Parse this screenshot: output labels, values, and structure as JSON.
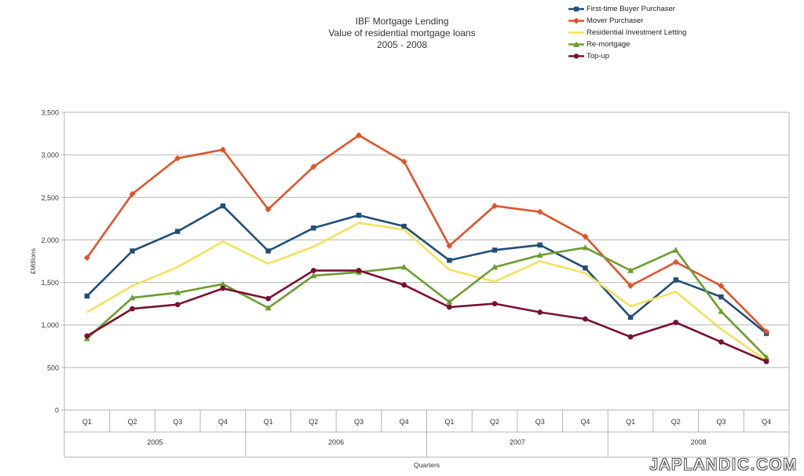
{
  "chart_data": {
    "type": "line",
    "title_lines": [
      "IBF Mortgage Lending",
      "Value of residential mortgage loans",
      "2005 - 2008"
    ],
    "xlabel": "Quarters",
    "ylabel": "£Millions",
    "ylim": [
      0,
      3500
    ],
    "yticks": [
      0,
      500,
      1000,
      1500,
      2000,
      2500,
      3000,
      3500
    ],
    "ytick_labels": [
      "0",
      "500",
      "1,000",
      "1,500",
      "2,000",
      "2,500",
      "3,000",
      "3,500"
    ],
    "grid": true,
    "legend_position": "top-right",
    "categories": [
      "Q1",
      "Q2",
      "Q3",
      "Q4",
      "Q1",
      "Q2",
      "Q3",
      "Q4",
      "Q1",
      "Q2",
      "Q3",
      "Q4",
      "Q1",
      "Q2",
      "Q3",
      "Q4"
    ],
    "year_groups": [
      "2005",
      "2006",
      "2007",
      "2008"
    ],
    "series": [
      {
        "name": "First-time Buyer Purchaser",
        "color": "#1f4e79",
        "marker": "square",
        "values": [
          1340,
          1870,
          2100,
          2400,
          1870,
          2140,
          2290,
          2160,
          1760,
          1880,
          1940,
          1670,
          1090,
          1530,
          1330,
          900
        ]
      },
      {
        "name": "Mover Purchaser",
        "color": "#e0532a",
        "marker": "diamond",
        "values": [
          1790,
          2540,
          2960,
          3060,
          2360,
          2860,
          3230,
          2920,
          1930,
          2400,
          2330,
          2040,
          1460,
          1740,
          1460,
          920
        ]
      },
      {
        "name": "Residential Investment Letting",
        "color": "#f2e25a",
        "marker": "none",
        "values": [
          1150,
          1460,
          1680,
          1980,
          1720,
          1920,
          2200,
          2120,
          1650,
          1510,
          1750,
          1610,
          1220,
          1390,
          950,
          580
        ]
      },
      {
        "name": "Re-mortgage",
        "color": "#6a9e2e",
        "marker": "triangle",
        "values": [
          840,
          1320,
          1380,
          1480,
          1200,
          1580,
          1620,
          1680,
          1270,
          1680,
          1820,
          1910,
          1640,
          1880,
          1160,
          620
        ]
      },
      {
        "name": "Top-up",
        "color": "#7a1030",
        "marker": "circle",
        "values": [
          870,
          1190,
          1240,
          1430,
          1310,
          1640,
          1640,
          1470,
          1210,
          1250,
          1150,
          1070,
          860,
          1030,
          800,
          570
        ]
      }
    ]
  },
  "watermark": "JAPLANDIC.COM"
}
